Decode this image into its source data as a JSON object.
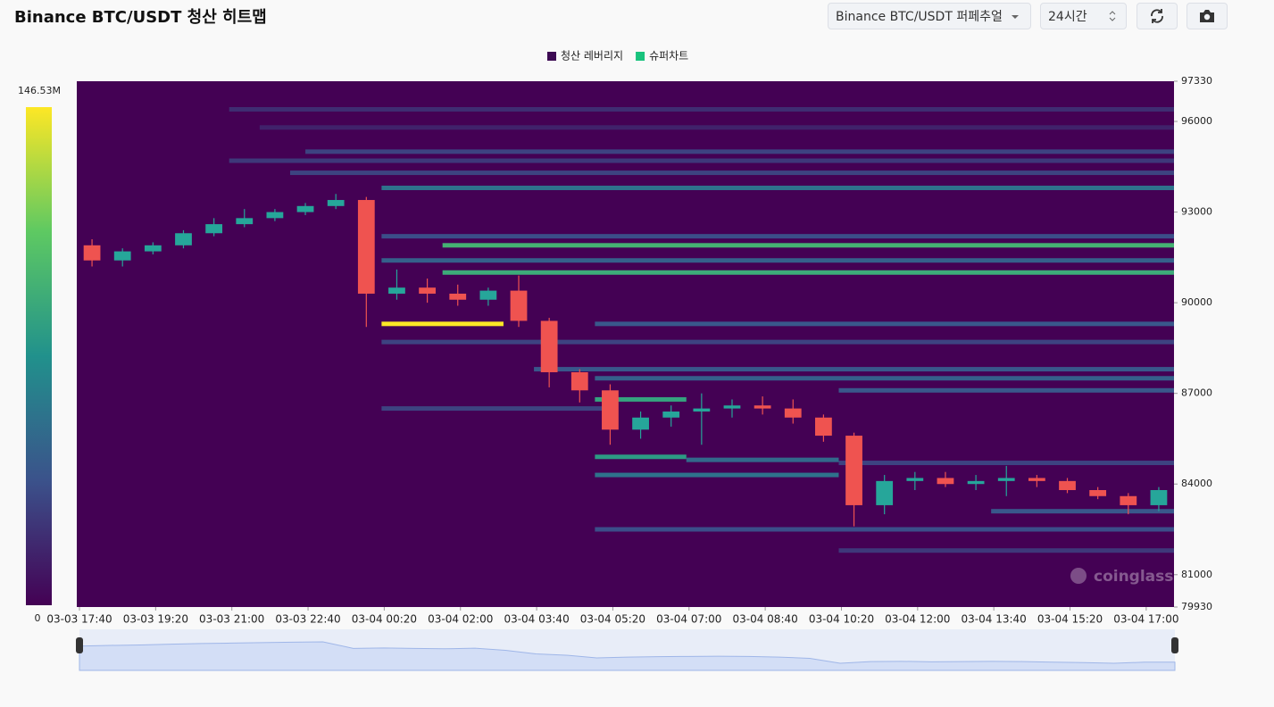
{
  "header": {
    "title": "Binance BTC/USDT 청산 히트맵",
    "exchange": "Binance BTC/USDT 퍼페추얼",
    "range": "24시간"
  },
  "chart_data": {
    "type": "liquidation-heatmap",
    "legend": [
      {
        "name": "청산 레버리지",
        "color": "#3d0b53"
      },
      {
        "name": "슈퍼차트",
        "color": "#19c37d"
      }
    ],
    "colorbar": {
      "min": 0,
      "max": {
        "value": 146.53,
        "label": "146.53M"
      }
    },
    "watermark": "coinglass",
    "background": "#440154",
    "up_color": "#26a69a",
    "down_color": "#ef5350",
    "ylim": [
      79930,
      97330
    ],
    "yticks": [
      79930,
      81000,
      84000,
      87000,
      90000,
      93000,
      96000,
      97330
    ],
    "xlim": [
      "03-03 17:40",
      "03-04 17:40"
    ],
    "xticks": [
      "03-03 17:40",
      "03-03 19:20",
      "03-03 21:00",
      "03-03 22:40",
      "03-04 00:20",
      "03-04 02:00",
      "03-04 03:40",
      "03-04 05:20",
      "03-04 07:00",
      "03-04 08:40",
      "03-04 10:20",
      "03-04 12:00",
      "03-04 13:40",
      "03-04 15:20",
      "03-04 17:00"
    ],
    "levels": [
      {
        "price": 96400,
        "start": "03-03 21:00",
        "end": null,
        "value": 20
      },
      {
        "price": 95800,
        "start": "03-03 21:40",
        "end": null,
        "value": 15
      },
      {
        "price": 95000,
        "start": "03-03 22:40",
        "end": null,
        "value": 30
      },
      {
        "price": 94700,
        "start": "03-03 21:00",
        "end": null,
        "value": 25
      },
      {
        "price": 94300,
        "start": "03-03 22:20",
        "end": null,
        "value": 30
      },
      {
        "price": 93800,
        "start": "03-04 00:20",
        "end": null,
        "value": 55
      },
      {
        "price": 92200,
        "start": "03-04 00:20",
        "end": null,
        "value": 35
      },
      {
        "price": 91900,
        "start": "03-04 01:40",
        "end": null,
        "value": 95
      },
      {
        "price": 91400,
        "start": "03-04 00:20",
        "end": null,
        "value": 45
      },
      {
        "price": 91000,
        "start": "03-04 01:40",
        "end": null,
        "value": 90
      },
      {
        "price": 89300,
        "start": "03-04 00:20",
        "end": "03-04 03:00",
        "value": 146
      },
      {
        "price": 89300,
        "start": "03-04 05:00",
        "end": null,
        "value": 40
      },
      {
        "price": 88700,
        "start": "03-04 00:20",
        "end": null,
        "value": 30
      },
      {
        "price": 87800,
        "start": "03-04 03:40",
        "end": null,
        "value": 40
      },
      {
        "price": 87500,
        "start": "03-04 05:00",
        "end": null,
        "value": 45
      },
      {
        "price": 87100,
        "start": "03-04 10:20",
        "end": null,
        "value": 40
      },
      {
        "price": 86800,
        "start": "03-04 05:00",
        "end": "03-04 07:00",
        "value": 85
      },
      {
        "price": 86500,
        "start": "03-04 00:20",
        "end": "03-04 05:20",
        "value": 30
      },
      {
        "price": 84900,
        "start": "03-04 05:00",
        "end": "03-04 07:00",
        "value": 80
      },
      {
        "price": 84800,
        "start": "03-04 07:00",
        "end": "03-04 10:20",
        "value": 50
      },
      {
        "price": 84700,
        "start": "03-04 10:20",
        "end": null,
        "value": 30
      },
      {
        "price": 84300,
        "start": "03-04 05:00",
        "end": "03-04 10:20",
        "value": 55
      },
      {
        "price": 83100,
        "start": "03-04 13:40",
        "end": null,
        "value": 40
      },
      {
        "price": 82500,
        "start": "03-04 05:00",
        "end": null,
        "value": 35
      },
      {
        "price": 81800,
        "start": "03-04 10:20",
        "end": null,
        "value": 25
      }
    ],
    "x": [
      "03-03 17:40",
      "03-03 18:20",
      "03-03 19:00",
      "03-03 19:40",
      "03-03 20:20",
      "03-03 21:00",
      "03-03 21:40",
      "03-03 22:20",
      "03-03 23:00",
      "03-03 23:40",
      "03-04 00:20",
      "03-04 01:00",
      "03-04 01:40",
      "03-04 02:20",
      "03-04 03:00",
      "03-04 03:40",
      "03-04 04:20",
      "03-04 05:00",
      "03-04 05:40",
      "03-04 06:20",
      "03-04 07:00",
      "03-04 07:40",
      "03-04 08:20",
      "03-04 09:00",
      "03-04 09:40",
      "03-04 10:20",
      "03-04 11:00",
      "03-04 11:40",
      "03-04 12:20",
      "03-04 13:00",
      "03-04 13:40",
      "03-04 14:20",
      "03-04 15:00",
      "03-04 15:40",
      "03-04 16:20",
      "03-04 17:00"
    ],
    "open": [
      91900,
      91400,
      91700,
      91900,
      92300,
      92600,
      92800,
      93000,
      93200,
      93400,
      90300,
      90500,
      90300,
      90100,
      90400,
      89400,
      87700,
      87100,
      85800,
      86200,
      86400,
      86500,
      86600,
      86500,
      86200,
      85600,
      83300,
      84100,
      84200,
      84000,
      84100,
      84200,
      84100,
      83800,
      83600,
      83300
    ],
    "high": [
      92100,
      91800,
      92000,
      92400,
      92800,
      93100,
      93100,
      93300,
      93600,
      93500,
      91100,
      90800,
      90600,
      90500,
      90900,
      89500,
      87800,
      87300,
      86400,
      86600,
      87000,
      86800,
      86900,
      86800,
      86300,
      85700,
      84300,
      84400,
      84400,
      84300,
      84600,
      84300,
      84200,
      83900,
      83700,
      83900
    ],
    "low": [
      91200,
      91200,
      91600,
      91800,
      92200,
      92500,
      92700,
      92900,
      93100,
      89200,
      90100,
      90000,
      89900,
      89900,
      89200,
      87200,
      86700,
      85300,
      85500,
      85900,
      85300,
      86200,
      86300,
      86000,
      85400,
      82600,
      83000,
      83800,
      83900,
      83800,
      83600,
      83900,
      83700,
      83500,
      83000,
      83100
    ],
    "close": [
      91400,
      91700,
      91900,
      92300,
      92600,
      92800,
      93000,
      93200,
      93400,
      90300,
      90500,
      90300,
      90100,
      90400,
      89400,
      87700,
      87100,
      85800,
      86200,
      86400,
      86500,
      86600,
      86500,
      86200,
      85600,
      83300,
      84100,
      84200,
      84000,
      84100,
      84200,
      84100,
      83800,
      83600,
      83300,
      83800
    ]
  }
}
